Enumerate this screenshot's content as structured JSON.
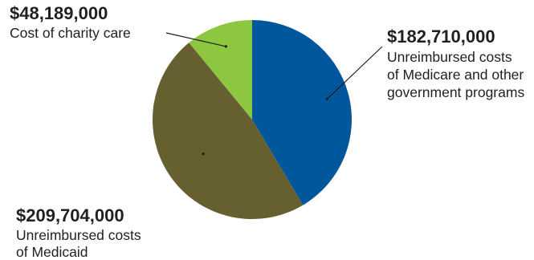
{
  "chart_data": {
    "type": "pie",
    "slices": [
      {
        "value": 182710000,
        "value_label": "$182,710,000",
        "description": [
          "Unreimbursed costs",
          "of Medicare and other",
          "government programs"
        ],
        "color": "#00579b"
      },
      {
        "value": 209704000,
        "value_label": "$209,704,000",
        "description": [
          "Unreimbursed costs",
          "of Medicaid"
        ],
        "color": "#666030"
      },
      {
        "value": 48189000,
        "value_label": "$48,189,000",
        "description": [
          "Cost of charity care"
        ],
        "color": "#8dc63f"
      }
    ]
  }
}
